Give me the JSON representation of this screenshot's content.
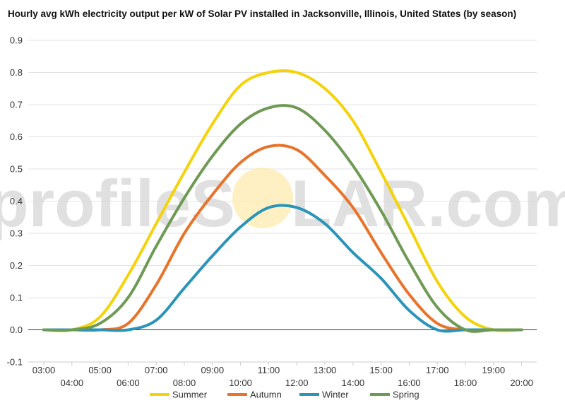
{
  "chart_data": {
    "type": "line",
    "title": "Hourly avg kWh electricity output per kW of Solar PV installed in Jacksonville, Illinois, United States (by season)",
    "xlabel": "",
    "ylabel": "",
    "ylim": [
      -0.1,
      0.9
    ],
    "y_ticks": [
      "-0.1",
      "0.0",
      "0.1",
      "0.2",
      "0.3",
      "0.4",
      "0.5",
      "0.6",
      "0.7",
      "0.8",
      "0.9"
    ],
    "y_tick_values": [
      -0.1,
      0.0,
      0.1,
      0.2,
      0.3,
      0.4,
      0.5,
      0.6,
      0.7,
      0.8,
      0.9
    ],
    "x": [
      "03:00",
      "04:00",
      "05:00",
      "06:00",
      "07:00",
      "08:00",
      "09:00",
      "10:00",
      "11:00",
      "12:00",
      "13:00",
      "14:00",
      "15:00",
      "16:00",
      "17:00",
      "18:00",
      "19:00",
      "20:00"
    ],
    "grid": true,
    "legend_position": "bottom",
    "series": [
      {
        "name": "Summer",
        "color": "#f5d30a",
        "values": [
          0.0,
          0.0,
          0.04,
          0.17,
          0.33,
          0.49,
          0.64,
          0.76,
          0.8,
          0.8,
          0.75,
          0.65,
          0.49,
          0.32,
          0.15,
          0.04,
          0.0,
          0.0
        ]
      },
      {
        "name": "Autumn",
        "color": "#e8732a",
        "values": [
          0.0,
          0.0,
          0.0,
          0.02,
          0.14,
          0.3,
          0.42,
          0.52,
          0.57,
          0.56,
          0.48,
          0.38,
          0.24,
          0.11,
          0.02,
          0.0,
          0.0,
          0.0
        ]
      },
      {
        "name": "Winter",
        "color": "#2b94b9",
        "values": [
          0.0,
          0.0,
          0.0,
          0.0,
          0.03,
          0.13,
          0.23,
          0.32,
          0.38,
          0.38,
          0.33,
          0.24,
          0.16,
          0.06,
          0.0,
          0.0,
          0.0,
          0.0
        ]
      },
      {
        "name": "Spring",
        "color": "#6e9a54",
        "values": [
          0.0,
          0.0,
          0.02,
          0.1,
          0.26,
          0.41,
          0.54,
          0.64,
          0.69,
          0.69,
          0.62,
          0.51,
          0.37,
          0.21,
          0.07,
          0.0,
          0.0,
          0.0
        ]
      }
    ]
  },
  "watermark": {
    "left": "profileS",
    "right": "LAR.com",
    "sun_color": "#fde9a8"
  }
}
